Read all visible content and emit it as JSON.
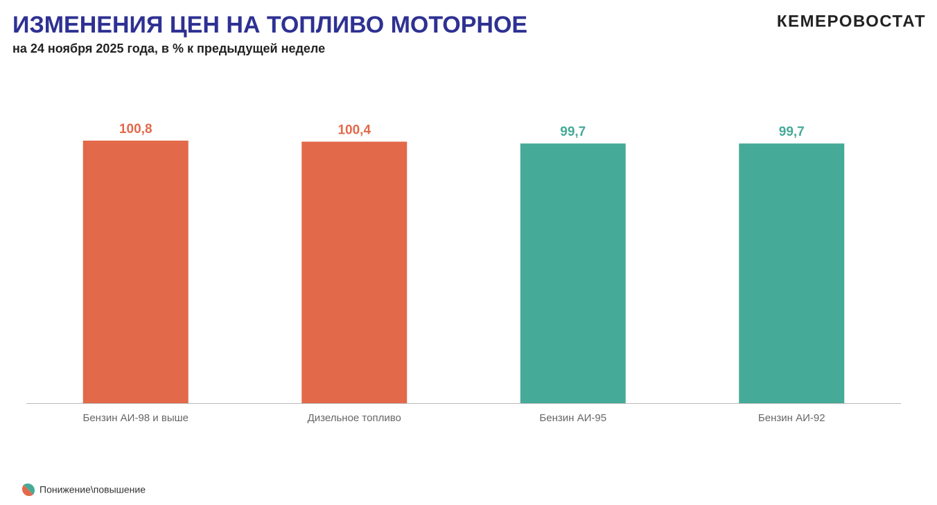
{
  "chart_data": {
    "type": "bar",
    "title": "ИЗМЕНЕНИЯ ЦЕН НА ТОПЛИВО МОТОРНОЕ",
    "subtitle": "на 24 ноября 2025 года, в % к предыдущей неделе",
    "brand": "КЕМЕРОВОСТАТ",
    "categories": [
      "Бензин АИ-98 и выше",
      "Дизельное топливо",
      "Бензин АИ-95",
      "Бензин АИ-92"
    ],
    "series": [
      {
        "name": "Понижение\\повышение",
        "values": [
          100.8,
          100.4,
          99.7,
          99.7
        ],
        "value_labels": [
          "100,8",
          "100,4",
          "99,7",
          "99,7"
        ],
        "colors": [
          "#e2694a",
          "#e2694a",
          "#46aa98",
          "#46aa98"
        ]
      }
    ],
    "grid": false
  }
}
